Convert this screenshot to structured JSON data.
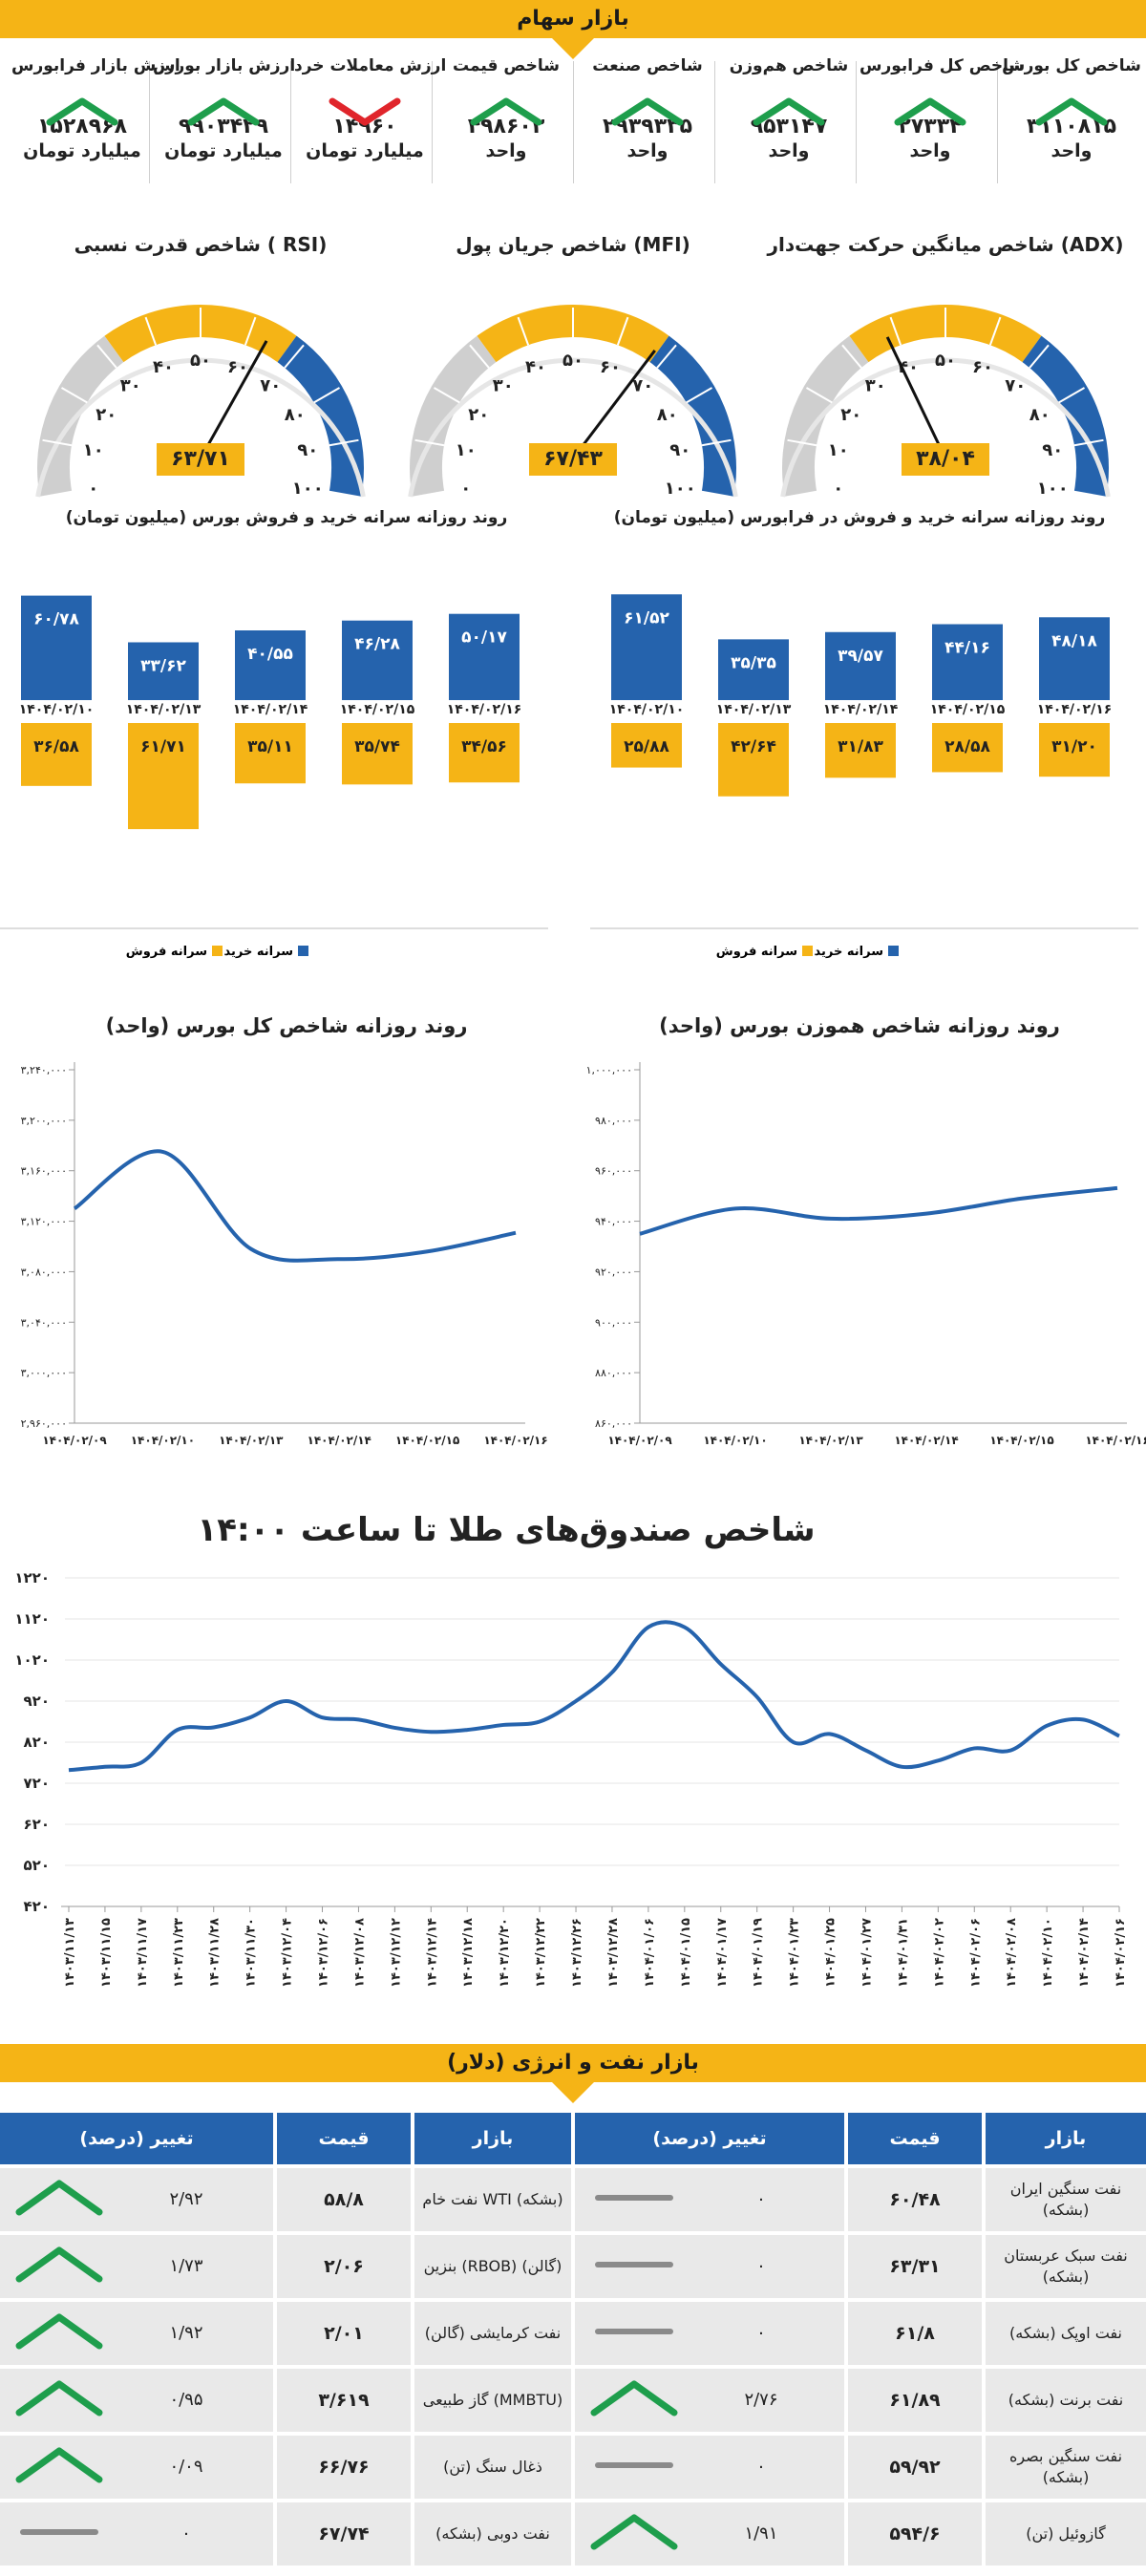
{
  "stock_market": {
    "title": "بازار سهام",
    "indicators": [
      {
        "label": "شاخص کل بورس",
        "value": "۳۱۱۰۸۱۵",
        "unit": "واحد",
        "trend": "up"
      },
      {
        "label": "شاخص کل فرابورس",
        "value": "۲۷۳۳۴",
        "unit": "واحد",
        "trend": "up"
      },
      {
        "label": "شاخص هم‌وزن",
        "value": "۹۵۳۱۴۷",
        "unit": "واحد",
        "trend": "up"
      },
      {
        "label": "شاخص صنعت",
        "value": "۲۹۳۹۳۳۵",
        "unit": "واحد",
        "trend": "up"
      },
      {
        "label": "شاخص قیمت",
        "value": "۴۹۸۶۰۳",
        "unit": "واحد",
        "trend": "up"
      },
      {
        "label": "ارزش معاملات خرد",
        "value": "۱۴۹۶۰",
        "unit": "میلیارد تومان",
        "trend": "down"
      },
      {
        "label": "ارزش بازار بورس",
        "value": "۹۹۰۳۴۲۹",
        "unit": "میلیارد تومان",
        "trend": "up"
      },
      {
        "label": "ارزش بازار فرابورس",
        "value": "۱۵۲۸۹۶۸",
        "unit": "میلیارد تومان",
        "trend": "up"
      }
    ]
  },
  "gauges": [
    {
      "title": "شاخص میانگین حرکت جهت‌دار (ADX)",
      "display": "۳۸/۰۴",
      "value": 38.04,
      "ticks": [
        "۰",
        "۱۰",
        "۲۰",
        "۳۰",
        "۴۰",
        "۵۰",
        "۶۰",
        "۷۰",
        "۸۰",
        "۹۰",
        "۱۰۰"
      ]
    },
    {
      "title": "شاخص جریان پول (MFI)",
      "display": "۶۷/۴۳",
      "value": 67.43,
      "ticks": [
        "۰",
        "۱۰",
        "۲۰",
        "۳۰",
        "۴۰",
        "۵۰",
        "۶۰",
        "۷۰",
        "۸۰",
        "۹۰",
        "۱۰۰"
      ]
    },
    {
      "title": "شاخص قدرت نسبی ( RSI)",
      "display": "۶۳/۷۱",
      "value": 63.71,
      "ticks": [
        "۰",
        "۱۰",
        "۲۰",
        "۳۰",
        "۴۰",
        "۵۰",
        "۶۰",
        "۷۰",
        "۸۰",
        "۹۰",
        "۱۰۰"
      ]
    }
  ],
  "colors": {
    "blue": "#2563ad",
    "gold": "#f5b416",
    "green": "#1e9e4c",
    "red": "#e0252b",
    "grey": "#8a8a8a"
  },
  "chart_data": [
    {
      "type": "bar",
      "title": "روند روزانه سرانه خرید و فروش در فرابورس (میلیون تومان)",
      "categories": [
        "۱۴۰۴/۰۲/۱۰",
        "۱۴۰۴/۰۲/۱۳",
        "۱۴۰۴/۰۲/۱۴",
        "۱۴۰۴/۰۲/۱۵",
        "۱۴۰۴/۰۲/۱۶"
      ],
      "series": [
        {
          "name": "سرانه خرید",
          "values": [
            61.52,
            35.35,
            39.57,
            44.16,
            48.18
          ],
          "labels": [
            "۶۱/۵۲",
            "۳۵/۳۵",
            "۳۹/۵۷",
            "۴۴/۱۶",
            "۴۸/۱۸"
          ]
        },
        {
          "name": "سرانه فروش",
          "values": [
            25.88,
            42.64,
            31.83,
            28.58,
            31.2
          ],
          "labels": [
            "۲۵/۸۸",
            "۴۲/۶۴",
            "۳۱/۸۳",
            "۲۸/۵۸",
            "۳۱/۲۰"
          ]
        }
      ]
    },
    {
      "type": "bar",
      "title": "روند روزانه سرانه خرید و فروش بورس (میلیون تومان)",
      "categories": [
        "۱۴۰۴/۰۲/۱۰",
        "۱۴۰۴/۰۲/۱۳",
        "۱۴۰۴/۰۲/۱۴",
        "۱۴۰۴/۰۲/۱۵",
        "۱۴۰۴/۰۲/۱۶"
      ],
      "series": [
        {
          "name": "سرانه خرید",
          "values": [
            60.78,
            33.62,
            40.55,
            46.28,
            50.17
          ],
          "labels": [
            "۶۰/۷۸",
            "۳۳/۶۲",
            "۴۰/۵۵",
            "۴۶/۲۸",
            "۵۰/۱۷"
          ]
        },
        {
          "name": "سرانه فروش",
          "values": [
            36.58,
            61.71,
            35.11,
            35.74,
            34.56
          ],
          "labels": [
            "۳۶/۵۸",
            "۶۱/۷۱",
            "۳۵/۱۱",
            "۳۵/۷۴",
            "۳۴/۵۶"
          ]
        }
      ]
    },
    {
      "type": "line",
      "title": "روند روزانه شاخص هموزن بورس (واحد)",
      "x": [
        "۱۴۰۴/۰۲/۰۹",
        "۱۴۰۴/۰۲/۱۰",
        "۱۴۰۴/۰۲/۱۳",
        "۱۴۰۴/۰۲/۱۴",
        "۱۴۰۴/۰۲/۱۵",
        "۱۴۰۴/۰۲/۱۶"
      ],
      "y": [
        935000,
        945000,
        941000,
        943000,
        949000,
        953147
      ],
      "ylim": [
        860000,
        1000000
      ],
      "yticks": [
        860000,
        880000,
        900000,
        920000,
        940000,
        960000,
        980000,
        1000000
      ],
      "ytick_labels": [
        "۸۶۰,۰۰۰",
        "۸۸۰,۰۰۰",
        "۹۰۰,۰۰۰",
        "۹۲۰,۰۰۰",
        "۹۴۰,۰۰۰",
        "۹۶۰,۰۰۰",
        "۹۸۰,۰۰۰",
        "۱,۰۰۰,۰۰۰"
      ]
    },
    {
      "type": "line",
      "title": "روند روزانه شاخص کل بورس (واحد)",
      "x": [
        "۱۴۰۴/۰۲/۰۹",
        "۱۴۰۴/۰۲/۱۰",
        "۱۴۰۴/۰۲/۱۳",
        "۱۴۰۴/۰۲/۱۴",
        "۱۴۰۴/۰۲/۱۵",
        "۱۴۰۴/۰۲/۱۶"
      ],
      "y": [
        3130000,
        3175000,
        3098000,
        3090000,
        3096000,
        3110815
      ],
      "ylim": [
        2960000,
        3240000
      ],
      "yticks": [
        2960000,
        3000000,
        3040000,
        3080000,
        3120000,
        3160000,
        3200000,
        3240000
      ],
      "ytick_labels": [
        "۲,۹۶۰,۰۰۰",
        "۳,۰۰۰,۰۰۰",
        "۳,۰۴۰,۰۰۰",
        "۳,۰۸۰,۰۰۰",
        "۳,۱۲۰,۰۰۰",
        "۳,۱۶۰,۰۰۰",
        "۳,۲۰۰,۰۰۰",
        "۳,۲۴۰,۰۰۰"
      ]
    },
    {
      "type": "line",
      "title": "شاخص صندوق‌های طلا  تا ساعت ۱۴:۰۰",
      "x": [
        "۱۴۰۳/۱۱/۱۳",
        "۱۴۰۳/۱۱/۱۵",
        "۱۴۰۳/۱۱/۱۷",
        "۱۴۰۳/۱۱/۲۳",
        "۱۴۰۳/۱۱/۲۸",
        "۱۴۰۳/۱۱/۳۰",
        "۱۴۰۳/۱۲/۰۴",
        "۱۴۰۳/۱۲/۰۶",
        "۱۴۰۳/۱۲/۰۸",
        "۱۴۰۳/۱۲/۱۲",
        "۱۴۰۳/۱۲/۱۴",
        "۱۴۰۳/۱۲/۱۸",
        "۱۴۰۳/۱۲/۲۰",
        "۱۴۰۳/۱۲/۲۲",
        "۱۴۰۳/۱۲/۲۶",
        "۱۴۰۳/۱۲/۲۸",
        "۱۴۰۴/۰۱/۰۶",
        "۱۴۰۴/۰۱/۱۵",
        "۱۴۰۴/۰۱/۱۷",
        "۱۴۰۴/۰۱/۱۹",
        "۱۴۰۴/۰۱/۲۳",
        "۱۴۰۴/۰۱/۲۵",
        "۱۴۰۴/۰۱/۲۷",
        "۱۴۰۴/۰۱/۳۱",
        "۱۴۰۴/۰۲/۰۲",
        "۱۴۰۴/۰۲/۰۶",
        "۱۴۰۴/۰۲/۰۸",
        "۱۴۰۴/۰۲/۱۰",
        "۱۴۰۴/۰۲/۱۴",
        "۱۴۰۴/۰۲/۱۶"
      ],
      "y": [
        752,
        760,
        770,
        850,
        856,
        880,
        920,
        880,
        875,
        855,
        845,
        850,
        862,
        870,
        920,
        990,
        1100,
        1100,
        1010,
        930,
        820,
        840,
        800,
        760,
        775,
        805,
        800,
        860,
        875,
        835
      ],
      "ylim": [
        420,
        1220
      ],
      "yticks": [
        420,
        520,
        620,
        720,
        820,
        920,
        1020,
        1120,
        1220
      ],
      "ytick_labels": [
        "۴۲۰",
        "۵۲۰",
        "۶۲۰",
        "۷۲۰",
        "۸۲۰",
        "۹۲۰",
        "۱۰۲۰",
        "۱۱۲۰",
        "۱۲۲۰"
      ]
    }
  ],
  "energy": {
    "title": "بازار نفت و انرژی (دلار)",
    "headers": {
      "market": "بازار",
      "price": "قیمت",
      "change": "تغییر (درصد)"
    },
    "right_rows": [
      {
        "market": "نفت سنگین ایران (بشکه)",
        "price": "۶۰/۴۸",
        "change": "۰",
        "trend": "flat"
      },
      {
        "market": "نفت سبک عربستان (بشکه)",
        "price": "۶۳/۳۱",
        "change": "۰",
        "trend": "flat"
      },
      {
        "market": "نفت اوپک (بشکه)",
        "price": "۶۱/۸",
        "change": "۰",
        "trend": "flat"
      },
      {
        "market": "نفت برنت (بشکه)",
        "price": "۶۱/۸۹",
        "change": "۲/۷۶",
        "trend": "up"
      },
      {
        "market": "نفت سنگین بصره (بشکه)",
        "price": "۵۹/۹۲",
        "change": "۰",
        "trend": "flat"
      },
      {
        "market": "گازوئیل (تن)",
        "price": "۵۹۴/۶",
        "change": "۱/۹۱",
        "trend": "up"
      }
    ],
    "left_rows": [
      {
        "market": "نفت خام WTI (بشکه)",
        "price": "۵۸/۸",
        "change": "۲/۹۲",
        "trend": "up"
      },
      {
        "market": "بنزین (RBOB) (گالن)",
        "price": "۲/۰۶",
        "change": "۱/۷۳",
        "trend": "up"
      },
      {
        "market": "نفت کرمایشی (گالن)",
        "price": "۲/۰۱",
        "change": "۱/۹۲",
        "trend": "up"
      },
      {
        "market": "گاز طبیعی (MMBTU)",
        "price": "۳/۶۱۹",
        "change": "۰/۹۵",
        "trend": "up"
      },
      {
        "market": "ذغال سنگ (تن)",
        "price": "۶۶/۷۶",
        "change": "۰/۰۹",
        "trend": "up"
      },
      {
        "market": "نفت دوبی (بشکه)",
        "price": "۶۷/۷۴",
        "change": "۰",
        "trend": "flat"
      }
    ]
  }
}
